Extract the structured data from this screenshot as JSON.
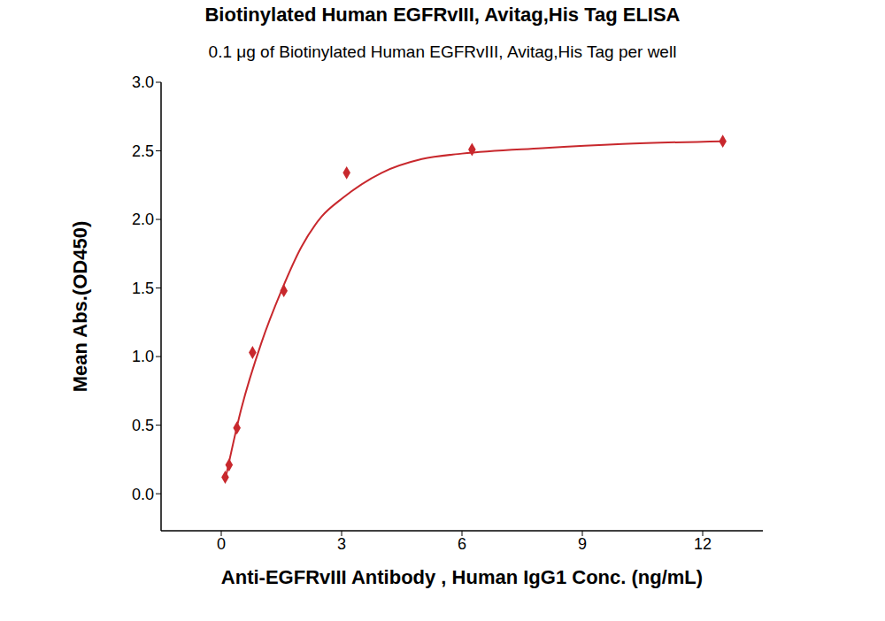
{
  "chart_data": {
    "type": "scatter",
    "title": "Biotinylated Human EGFRvIII, Avitag,His Tag ELISA",
    "subtitle": "0.1 μg of Biotinylated Human EGFRvIII, Avitag,His Tag per well",
    "x_label": "Anti-EGFRvIII Antibody , Human IgG1 Conc. (ng/mL)",
    "y_label": "Mean Abs.(OD450)",
    "x": [
      0.098,
      0.195,
      0.39,
      0.78,
      1.56,
      3.125,
      6.25,
      12.5
    ],
    "values": [
      0.12,
      0.21,
      0.48,
      1.03,
      1.48,
      2.34,
      2.51,
      2.57
    ],
    "fit": {
      "x": [
        0.098,
        0.5,
        1,
        1.5,
        2,
        2.5,
        3,
        4,
        5,
        6,
        8,
        10,
        12.5
      ],
      "values": [
        0.1,
        0.62,
        1.1,
        1.48,
        1.8,
        2.02,
        2.15,
        2.34,
        2.44,
        2.48,
        2.52,
        2.55,
        2.57
      ]
    },
    "color": "#c8282d",
    "marker": "diamond",
    "line_style": "solid",
    "xlim": [
      -1.5,
      13.5
    ],
    "xticks": [
      0,
      3,
      6,
      9,
      12
    ],
    "ylim": [
      -0.27,
      3.0
    ],
    "yticks": [
      {
        "value": 0,
        "label": "0.0"
      },
      {
        "value": 0.5,
        "label": "0.5"
      },
      {
        "value": 1,
        "label": "1.0"
      },
      {
        "value": 1.5,
        "label": "1.5"
      },
      {
        "value": 2,
        "label": "2.0"
      },
      {
        "value": 2.5,
        "label": "2.5"
      },
      {
        "value": 3,
        "label": "3.0"
      }
    ],
    "grid": false
  }
}
